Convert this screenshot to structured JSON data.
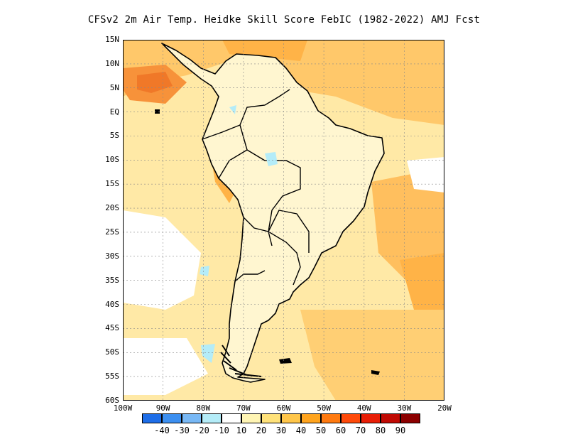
{
  "title": "CFSv2  2m Air Temp. Heidke Skill Score FebIC (1982-2022) AMJ Fcst",
  "lat_labels": [
    "15N",
    "10N",
    "5N",
    "EQ",
    "5S",
    "10S",
    "15S",
    "20S",
    "25S",
    "30S",
    "35S",
    "40S",
    "45S",
    "50S",
    "55S",
    "60S"
  ],
  "lon_labels": [
    "100W",
    "90W",
    "80W",
    "70W",
    "60W",
    "50W",
    "40W",
    "30W",
    "20W"
  ],
  "colorbar": {
    "colors": [
      "#1e6ee8",
      "#3c8ff0",
      "#78b8f5",
      "#b4ecf8",
      "#ffffff",
      "#fff5b4",
      "#ffe27a",
      "#ffc64a",
      "#ffa41e",
      "#ff7a10",
      "#ff4a0a",
      "#e81e06",
      "#c00a04",
      "#8c0000"
    ],
    "labels": [
      "-40",
      "-30",
      "-20",
      "-10",
      "10",
      "20",
      "30",
      "40",
      "50",
      "60",
      "70",
      "80",
      "90"
    ]
  },
  "map_colors": {
    "ocean_base": "#ffe9a6",
    "land_base": "#fff9dc",
    "orange_light": "#ffcf74",
    "orange_mid": "#ffb347",
    "orange_dark": "#f7923a",
    "red_orange": "#f07828",
    "white": "#ffffff",
    "cyan": "#b4ecf8"
  }
}
